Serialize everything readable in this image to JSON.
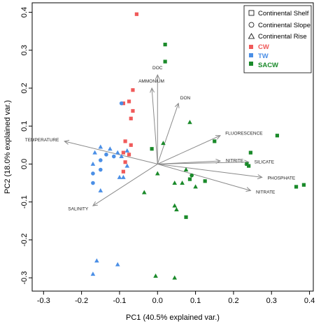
{
  "chart_data": {
    "type": "scatter",
    "title": "",
    "xlabel": "PC1 (40.5% explained var.)",
    "ylabel": "PC2 (18.0% explained var.)",
    "xlim": [
      -0.33,
      0.41
    ],
    "ylim": [
      -0.335,
      0.425
    ],
    "xticks": [
      "-0.3",
      "-0.2",
      "-0.1",
      "0.0",
      "0.1",
      "0.2",
      "0.3",
      "0.4"
    ],
    "yticks": [
      "-0.3",
      "-0.2",
      "-0.1",
      "0.0",
      "0.1",
      "0.2",
      "0.3",
      "0.4"
    ],
    "grid": false,
    "legend": {
      "position": "top-right",
      "shapes": [
        {
          "label": "Continental Shelf",
          "marker": "square"
        },
        {
          "label": "Continental Slope",
          "marker": "circle"
        },
        {
          "label": "Continental Rise",
          "marker": "triangle"
        }
      ],
      "groups": [
        {
          "label": "CW",
          "color": "#f05a5a"
        },
        {
          "label": "TW",
          "color": "#4b8fe6"
        },
        {
          "label": "SACW",
          "color": "#1a8a2a"
        }
      ]
    },
    "loadings": [
      {
        "label": "DOC",
        "x": 0.0,
        "y": 0.235
      },
      {
        "label": "AMMONIUM",
        "x": -0.015,
        "y": 0.2
      },
      {
        "label": "DON",
        "x": 0.055,
        "y": 0.16
      },
      {
        "label": "FLUORESCENCE",
        "x": 0.165,
        "y": 0.075
      },
      {
        "label": "TEMPERATURE",
        "x": -0.245,
        "y": 0.06
      },
      {
        "label": "NITRITE",
        "x": 0.165,
        "y": 0.008
      },
      {
        "label": "SILICATE",
        "x": 0.24,
        "y": 0.005
      },
      {
        "label": "PHOSPHATE",
        "x": 0.275,
        "y": -0.035
      },
      {
        "label": "NITRATE",
        "x": 0.245,
        "y": -0.07
      },
      {
        "label": "SALINITY",
        "x": -0.17,
        "y": -0.11
      }
    ],
    "series": [
      {
        "name": "CW",
        "color": "#f05a5a",
        "points": [
          {
            "x": -0.055,
            "y": 0.395,
            "shape": "square"
          },
          {
            "x": -0.065,
            "y": 0.195,
            "shape": "square"
          },
          {
            "x": -0.075,
            "y": 0.165,
            "shape": "square"
          },
          {
            "x": -0.09,
            "y": 0.16,
            "shape": "square"
          },
          {
            "x": -0.065,
            "y": 0.14,
            "shape": "square"
          },
          {
            "x": -0.07,
            "y": 0.12,
            "shape": "square"
          },
          {
            "x": -0.085,
            "y": 0.06,
            "shape": "square"
          },
          {
            "x": -0.07,
            "y": 0.05,
            "shape": "square"
          },
          {
            "x": -0.09,
            "y": 0.03,
            "shape": "square"
          },
          {
            "x": -0.075,
            "y": 0.025,
            "shape": "square"
          },
          {
            "x": -0.085,
            "y": 0.005,
            "shape": "square"
          },
          {
            "x": -0.09,
            "y": -0.02,
            "shape": "square"
          }
        ]
      },
      {
        "name": "TW",
        "color": "#4b8fe6",
        "points": [
          {
            "x": -0.095,
            "y": 0.16,
            "shape": "circle"
          },
          {
            "x": -0.15,
            "y": 0.045,
            "shape": "triangle"
          },
          {
            "x": -0.125,
            "y": 0.04,
            "shape": "triangle"
          },
          {
            "x": -0.08,
            "y": 0.035,
            "shape": "triangle"
          },
          {
            "x": -0.165,
            "y": 0.03,
            "shape": "triangle"
          },
          {
            "x": -0.105,
            "y": 0.03,
            "shape": "triangle"
          },
          {
            "x": -0.135,
            "y": 0.025,
            "shape": "circle"
          },
          {
            "x": -0.115,
            "y": 0.02,
            "shape": "circle"
          },
          {
            "x": -0.095,
            "y": 0.02,
            "shape": "triangle"
          },
          {
            "x": -0.15,
            "y": 0.01,
            "shape": "circle"
          },
          {
            "x": -0.17,
            "y": 0.0,
            "shape": "triangle"
          },
          {
            "x": -0.08,
            "y": -0.005,
            "shape": "triangle"
          },
          {
            "x": -0.15,
            "y": -0.015,
            "shape": "circle"
          },
          {
            "x": -0.17,
            "y": -0.025,
            "shape": "circle"
          },
          {
            "x": -0.1,
            "y": -0.035,
            "shape": "triangle"
          },
          {
            "x": -0.09,
            "y": -0.035,
            "shape": "triangle"
          },
          {
            "x": -0.17,
            "y": -0.05,
            "shape": "circle"
          },
          {
            "x": -0.15,
            "y": -0.07,
            "shape": "triangle"
          },
          {
            "x": -0.16,
            "y": -0.255,
            "shape": "triangle"
          },
          {
            "x": -0.105,
            "y": -0.265,
            "shape": "triangle"
          },
          {
            "x": -0.17,
            "y": -0.29,
            "shape": "triangle"
          }
        ]
      },
      {
        "name": "SACW",
        "color": "#1a8a2a",
        "points": [
          {
            "x": 0.02,
            "y": 0.315,
            "shape": "square"
          },
          {
            "x": 0.02,
            "y": 0.27,
            "shape": "square"
          },
          {
            "x": 0.085,
            "y": 0.11,
            "shape": "triangle"
          },
          {
            "x": 0.315,
            "y": 0.075,
            "shape": "square"
          },
          {
            "x": 0.15,
            "y": 0.06,
            "shape": "square"
          },
          {
            "x": 0.015,
            "y": 0.055,
            "shape": "triangle"
          },
          {
            "x": -0.015,
            "y": 0.04,
            "shape": "square"
          },
          {
            "x": 0.245,
            "y": 0.03,
            "shape": "square"
          },
          {
            "x": 0.235,
            "y": 0.0,
            "shape": "square"
          },
          {
            "x": 0.24,
            "y": -0.005,
            "shape": "square"
          },
          {
            "x": 0.075,
            "y": -0.015,
            "shape": "triangle"
          },
          {
            "x": 0.0,
            "y": -0.025,
            "shape": "triangle"
          },
          {
            "x": 0.09,
            "y": -0.03,
            "shape": "circle"
          },
          {
            "x": 0.085,
            "y": -0.04,
            "shape": "square"
          },
          {
            "x": 0.125,
            "y": -0.045,
            "shape": "square"
          },
          {
            "x": 0.065,
            "y": -0.05,
            "shape": "triangle"
          },
          {
            "x": 0.045,
            "y": -0.05,
            "shape": "triangle"
          },
          {
            "x": 0.385,
            "y": -0.055,
            "shape": "square"
          },
          {
            "x": 0.365,
            "y": -0.06,
            "shape": "square"
          },
          {
            "x": 0.1,
            "y": -0.06,
            "shape": "triangle"
          },
          {
            "x": -0.035,
            "y": -0.075,
            "shape": "triangle"
          },
          {
            "x": 0.045,
            "y": -0.11,
            "shape": "triangle"
          },
          {
            "x": 0.05,
            "y": -0.12,
            "shape": "triangle"
          },
          {
            "x": 0.075,
            "y": -0.14,
            "shape": "square"
          },
          {
            "x": -0.005,
            "y": -0.295,
            "shape": "triangle"
          },
          {
            "x": 0.045,
            "y": -0.3,
            "shape": "triangle"
          }
        ]
      }
    ]
  }
}
